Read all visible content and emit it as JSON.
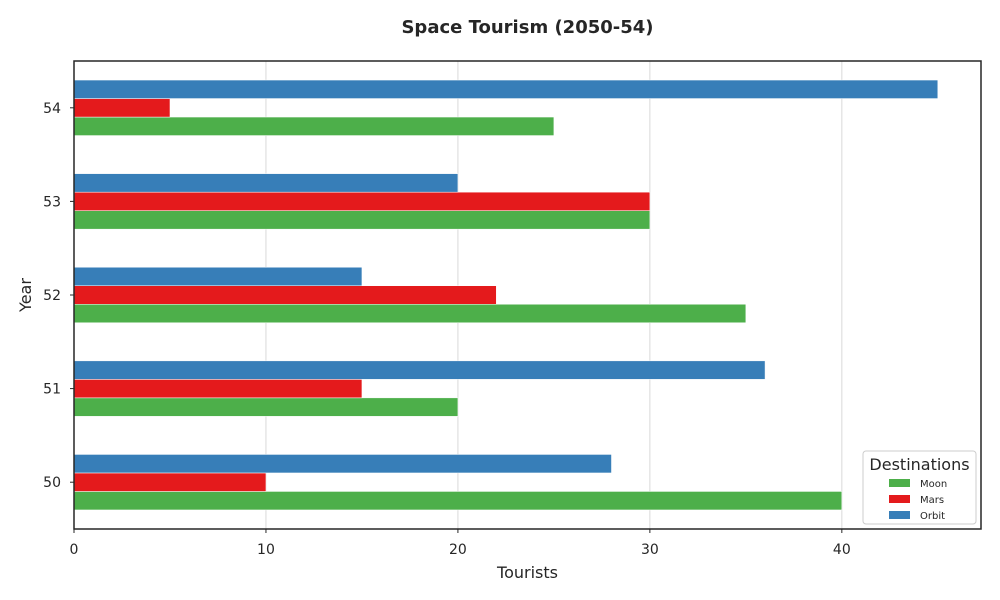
{
  "chart_data": {
    "type": "bar",
    "orientation": "horizontal",
    "title": "Space Tourism (2050-54)",
    "xlabel": "Tourists",
    "ylabel": "Year",
    "categories": [
      "50",
      "51",
      "52",
      "53",
      "54"
    ],
    "series": [
      {
        "name": "Moon",
        "color": "#4daf4a",
        "values": [
          40,
          20,
          35,
          30,
          25
        ]
      },
      {
        "name": "Mars",
        "color": "#e41a1c",
        "values": [
          10,
          15,
          22,
          30,
          5
        ]
      },
      {
        "name": "Orbit",
        "color": "#377eb8",
        "values": [
          28,
          36,
          15,
          20,
          45
        ]
      }
    ],
    "xlim": [
      0,
      47.25
    ],
    "xticks": [
      0,
      10,
      20,
      30,
      40
    ],
    "grid": "vertical",
    "legend": {
      "title": "Destinations",
      "placement": "lower-right"
    }
  }
}
